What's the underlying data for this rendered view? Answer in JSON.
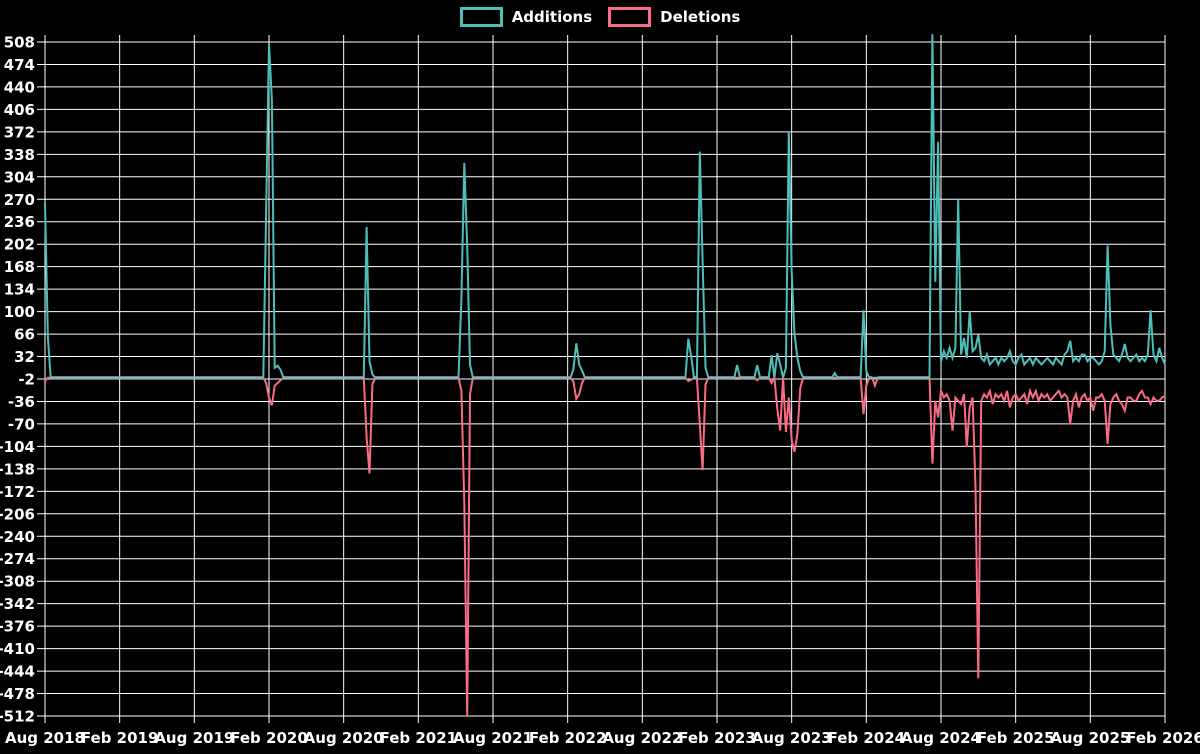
{
  "legend": {
    "additions_label": "Additions",
    "deletions_label": "Deletions"
  },
  "colors": {
    "additions": "#4DBFBA",
    "deletions": "#FA6C84",
    "zero_baseline_blend": "#8FB0B8",
    "grid": "#FFFFFF",
    "background": "#000000",
    "text": "#FFFFFF"
  },
  "chart_data": {
    "type": "line",
    "title": "",
    "xlabel": "",
    "ylabel": "",
    "grid": true,
    "legend_position": "top-center",
    "series": [
      {
        "name": "Additions",
        "color": "#4DBFBA"
      },
      {
        "name": "Deletions",
        "color": "#FA6C84"
      }
    ],
    "x_tick_labels": [
      "Aug 2018",
      "Feb 2019",
      "Aug 2019",
      "Feb 2020",
      "Aug 2020",
      "Feb 2021",
      "Aug 2021",
      "Feb 2022",
      "Aug 2022",
      "Feb 2023",
      "Aug 2023",
      "Feb 2024",
      "Aug 2024",
      "Feb 2025",
      "Aug 2025",
      "Feb 2026"
    ],
    "y_tick_labels": [
      508,
      474,
      440,
      406,
      372,
      338,
      304,
      270,
      236,
      202,
      168,
      134,
      100,
      66,
      32,
      -2,
      -36,
      -70,
      -104,
      -138,
      -172,
      -206,
      -240,
      -274,
      -308,
      -342,
      -376,
      -410,
      -444,
      -478,
      -512
    ],
    "ylim": [
      -512,
      508
    ],
    "x_range_weeks": 390,
    "unlisted_weeks_value": [
      0,
      0
    ],
    "points_format": "[week_index_from_Aug_2018, additions, deletions]",
    "sparse_weekly_points": [
      [
        0,
        265,
        -5
      ],
      [
        1,
        60,
        0
      ],
      [
        77,
        248,
        -8
      ],
      [
        78,
        505,
        -30
      ],
      [
        79,
        420,
        -42
      ],
      [
        80,
        15,
        -12
      ],
      [
        81,
        18,
        -8
      ],
      [
        82,
        12,
        -4
      ],
      [
        112,
        228,
        -90
      ],
      [
        113,
        25,
        -145
      ],
      [
        114,
        5,
        -10
      ],
      [
        145,
        120,
        -20
      ],
      [
        146,
        325,
        -190
      ],
      [
        147,
        200,
        -512
      ],
      [
        148,
        20,
        -25
      ],
      [
        184,
        13,
        -6
      ],
      [
        185,
        52,
        -32
      ],
      [
        186,
        20,
        -25
      ],
      [
        187,
        11,
        -8
      ],
      [
        224,
        59,
        -5
      ],
      [
        225,
        32,
        -3
      ],
      [
        228,
        342,
        -70
      ],
      [
        229,
        178,
        -140
      ],
      [
        230,
        15,
        -10
      ],
      [
        241,
        19,
        0
      ],
      [
        248,
        19,
        -4
      ],
      [
        253,
        34,
        -8
      ],
      [
        255,
        37,
        -47
      ],
      [
        256,
        20,
        -80
      ],
      [
        258,
        15,
        -82
      ],
      [
        259,
        372,
        -30
      ],
      [
        260,
        160,
        -95
      ],
      [
        261,
        66,
        -112
      ],
      [
        262,
        30,
        -85
      ],
      [
        263,
        10,
        -15
      ],
      [
        275,
        7,
        0
      ],
      [
        285,
        102,
        -55
      ],
      [
        286,
        10,
        -12
      ],
      [
        289,
        0,
        -12
      ],
      [
        309,
        520,
        -130
      ],
      [
        310,
        145,
        -35
      ],
      [
        311,
        357,
        -60
      ],
      [
        312,
        25,
        -20
      ],
      [
        313,
        40,
        -30
      ],
      [
        314,
        30,
        -25
      ],
      [
        315,
        45,
        -35
      ],
      [
        316,
        30,
        -80
      ],
      [
        317,
        45,
        -30
      ],
      [
        318,
        270,
        -35
      ],
      [
        319,
        35,
        -40
      ],
      [
        320,
        60,
        -25
      ],
      [
        321,
        30,
        -105
      ],
      [
        322,
        100,
        -45
      ],
      [
        323,
        40,
        -30
      ],
      [
        324,
        45,
        -165
      ],
      [
        325,
        65,
        -455
      ],
      [
        326,
        30,
        -35
      ],
      [
        327,
        25,
        -25
      ],
      [
        328,
        35,
        -30
      ],
      [
        329,
        20,
        -20
      ],
      [
        330,
        25,
        -40
      ],
      [
        331,
        30,
        -25
      ],
      [
        332,
        20,
        -30
      ],
      [
        333,
        30,
        -25
      ],
      [
        334,
        25,
        -35
      ],
      [
        335,
        30,
        -20
      ],
      [
        336,
        40,
        -45
      ],
      [
        337,
        25,
        -30
      ],
      [
        338,
        20,
        -25
      ],
      [
        339,
        30,
        -35
      ],
      [
        340,
        35,
        -30
      ],
      [
        341,
        20,
        -25
      ],
      [
        342,
        25,
        -40
      ],
      [
        343,
        30,
        -20
      ],
      [
        344,
        20,
        -30
      ],
      [
        345,
        30,
        -20
      ],
      [
        346,
        25,
        -35
      ],
      [
        347,
        20,
        -25
      ],
      [
        348,
        25,
        -30
      ],
      [
        349,
        30,
        -25
      ],
      [
        350,
        25,
        -35
      ],
      [
        351,
        20,
        -30
      ],
      [
        352,
        30,
        -25
      ],
      [
        353,
        25,
        -20
      ],
      [
        354,
        20,
        -30
      ],
      [
        355,
        35,
        -25
      ],
      [
        356,
        40,
        -30
      ],
      [
        357,
        56,
        -70
      ],
      [
        358,
        25,
        -35
      ],
      [
        359,
        30,
        -25
      ],
      [
        360,
        25,
        -45
      ],
      [
        361,
        35,
        -30
      ],
      [
        362,
        35,
        -25
      ],
      [
        363,
        25,
        -35
      ],
      [
        364,
        30,
        -30
      ],
      [
        365,
        30,
        -50
      ],
      [
        366,
        25,
        -30
      ],
      [
        367,
        20,
        -30
      ],
      [
        368,
        25,
        -25
      ],
      [
        369,
        40,
        -35
      ],
      [
        370,
        200,
        -100
      ],
      [
        371,
        80,
        -40
      ],
      [
        372,
        35,
        -30
      ],
      [
        373,
        30,
        -25
      ],
      [
        374,
        25,
        -35
      ],
      [
        375,
        35,
        -40
      ],
      [
        376,
        51,
        -50
      ],
      [
        377,
        30,
        -30
      ],
      [
        378,
        25,
        -30
      ],
      [
        379,
        30,
        -35
      ],
      [
        380,
        35,
        -35
      ],
      [
        381,
        25,
        -25
      ],
      [
        382,
        30,
        -20
      ],
      [
        383,
        25,
        -30
      ],
      [
        384,
        35,
        -30
      ],
      [
        385,
        102,
        -40
      ],
      [
        386,
        35,
        -30
      ],
      [
        387,
        25,
        -35
      ],
      [
        388,
        45,
        -35
      ],
      [
        389,
        30,
        -30
      ],
      [
        390,
        20,
        -28
      ]
    ]
  }
}
